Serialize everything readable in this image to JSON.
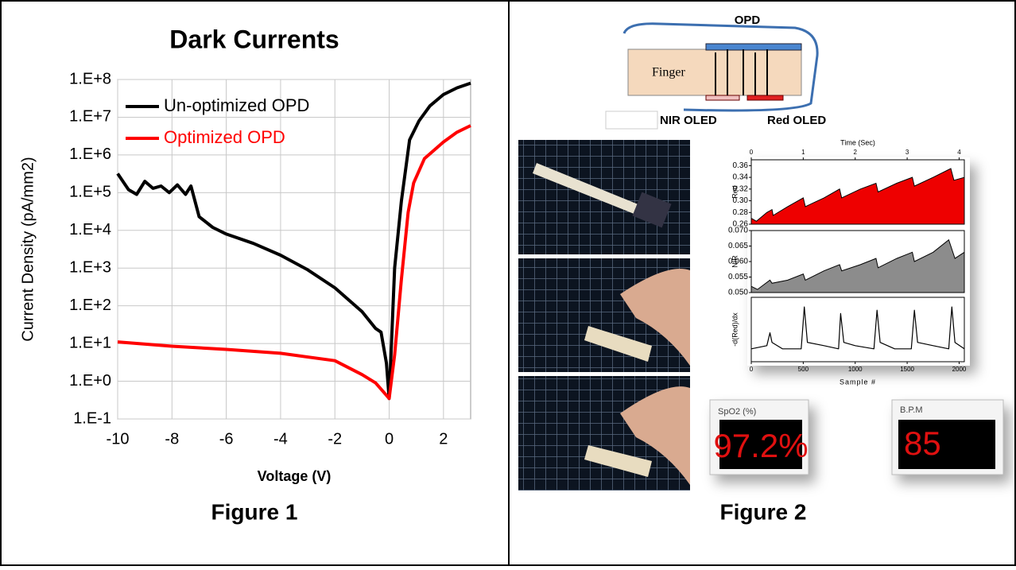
{
  "chart_data": [
    {
      "type": "line",
      "title": "Dark Currents",
      "xlabel": "Voltage (V)",
      "ylabel": "Current Density (pA/mm2)",
      "log_y": true,
      "grid": true,
      "legend": "upper left",
      "xlim": [
        -10,
        3
      ],
      "xticks": [
        -10,
        -8,
        -6,
        -4,
        -2,
        0,
        2
      ],
      "ylim": [
        0.1,
        100000000
      ],
      "yticks": [
        {
          "value": 0.1,
          "label": "1.E-1"
        },
        {
          "value": 1,
          "label": "1.E+0"
        },
        {
          "value": 10,
          "label": "1.E+1"
        },
        {
          "value": 100,
          "label": "1.E+2"
        },
        {
          "value": 1000,
          "label": "1.E+3"
        },
        {
          "value": 10000,
          "label": "1.E+4"
        },
        {
          "value": 100000,
          "label": "1.E+5"
        },
        {
          "value": 1000000,
          "label": "1.E+6"
        },
        {
          "value": 10000000,
          "label": "1.E+7"
        },
        {
          "value": 100000000,
          "label": "1.E+8"
        }
      ],
      "series": [
        {
          "name": "Un-optimized OPD",
          "color": "#000000",
          "x": [
            -10,
            -9.6,
            -9.3,
            -9,
            -8.7,
            -8.4,
            -8.1,
            -7.8,
            -7.5,
            -7.3,
            -7,
            -6.5,
            -6,
            -5,
            -4,
            -3,
            -2,
            -1,
            -0.5,
            -0.3,
            -0.1,
            0,
            0.2,
            0.45,
            0.75,
            1.1,
            1.5,
            2,
            2.5,
            3
          ],
          "values": [
            320000,
            120000,
            90000,
            200000,
            130000,
            150000,
            100000,
            160000,
            90000,
            150000,
            23000,
            12000,
            8000,
            4500,
            2200,
            900,
            300,
            70,
            25,
            20,
            3,
            0.35,
            1000,
            60000,
            2500000,
            8000000,
            20000000,
            40000000,
            60000000,
            80000000
          ]
        },
        {
          "name": "Optimized OPD",
          "color": "#ff0000",
          "x": [
            -10,
            -8,
            -6,
            -4,
            -2,
            -1,
            -0.5,
            0,
            0.2,
            0.45,
            0.7,
            0.9,
            1.3,
            2,
            2.5,
            3
          ],
          "values": [
            11,
            8.5,
            7,
            5.5,
            3.5,
            1.5,
            0.9,
            0.35,
            5,
            500,
            30000,
            180000,
            800000,
            2200000,
            4000000,
            6000000
          ]
        }
      ]
    },
    {
      "type": "area",
      "ylabel": "Red",
      "x2label": "Time (Sec)",
      "line_color": "#000000",
      "xlim": [
        0,
        2050
      ],
      "x2lim": [
        0,
        4.1
      ],
      "x2ticks": [
        0,
        1,
        2,
        3,
        4
      ],
      "ylim": [
        0.26,
        0.37
      ],
      "yticks": [
        0.26,
        0.28,
        {
          "value": 0.3,
          "label": "0.30"
        },
        0.32,
        0.34,
        0.36
      ],
      "series": [
        {
          "color": "#ee0000",
          "x": [
            0,
            50,
            150,
            200,
            210,
            350,
            500,
            520,
            700,
            850,
            870,
            1050,
            1200,
            1220,
            1400,
            1550,
            1570,
            1750,
            1920,
            1950,
            2050
          ],
          "values": [
            0.27,
            0.265,
            0.28,
            0.285,
            0.275,
            0.29,
            0.305,
            0.29,
            0.305,
            0.32,
            0.305,
            0.32,
            0.33,
            0.315,
            0.33,
            0.34,
            0.325,
            0.34,
            0.355,
            0.335,
            0.34
          ]
        }
      ]
    },
    {
      "type": "area",
      "ylabel": "NIR",
      "line_color": "#000000",
      "xlim": [
        0,
        2050
      ],
      "ylim": [
        0.05,
        0.07
      ],
      "yticks": [
        {
          "value": 0.05,
          "label": "0.050"
        },
        0.055,
        {
          "value": 0.06,
          "label": "0.060"
        },
        0.065,
        {
          "value": 0.07,
          "label": "0.070"
        }
      ],
      "series": [
        {
          "color": "#8c8c8c",
          "x": [
            0,
            60,
            180,
            200,
            350,
            500,
            520,
            700,
            850,
            870,
            1050,
            1200,
            1220,
            1400,
            1550,
            1570,
            1750,
            1900,
            1960,
            2050
          ],
          "values": [
            0.052,
            0.051,
            0.054,
            0.053,
            0.054,
            0.056,
            0.054,
            0.057,
            0.059,
            0.057,
            0.059,
            0.061,
            0.058,
            0.061,
            0.063,
            0.06,
            0.063,
            0.067,
            0.061,
            0.063
          ]
        }
      ]
    },
    {
      "type": "line",
      "ylabel": "-d(Red)/dx",
      "xlabel": "Sample #",
      "xlim": [
        0,
        2050
      ],
      "xticks": [
        0,
        500,
        1000,
        1500,
        2000
      ],
      "ylim": [
        0,
        1
      ],
      "series": [
        {
          "color": "#000000",
          "x": [
            0,
            150,
            180,
            200,
            300,
            480,
            510,
            540,
            700,
            840,
            860,
            890,
            1000,
            1180,
            1210,
            1240,
            1380,
            1540,
            1570,
            1600,
            1750,
            1900,
            1930,
            1960,
            2050
          ],
          "values": [
            0.2,
            0.25,
            0.45,
            0.3,
            0.2,
            0.2,
            0.85,
            0.3,
            0.25,
            0.2,
            0.75,
            0.3,
            0.25,
            0.2,
            0.8,
            0.3,
            0.2,
            0.2,
            0.8,
            0.3,
            0.25,
            0.2,
            0.85,
            0.3,
            0.2
          ]
        }
      ]
    }
  ],
  "captions": [
    "Figure 1",
    "Figure 2"
  ],
  "diagram": {
    "opd": "OPD",
    "finger": "Finger",
    "nir": "NIR OLED",
    "red": "Red OLED"
  },
  "readouts": [
    {
      "label": "SpO2 (%)",
      "value": "97.2%"
    },
    {
      "label": "B.P.M",
      "value": "85"
    }
  ]
}
